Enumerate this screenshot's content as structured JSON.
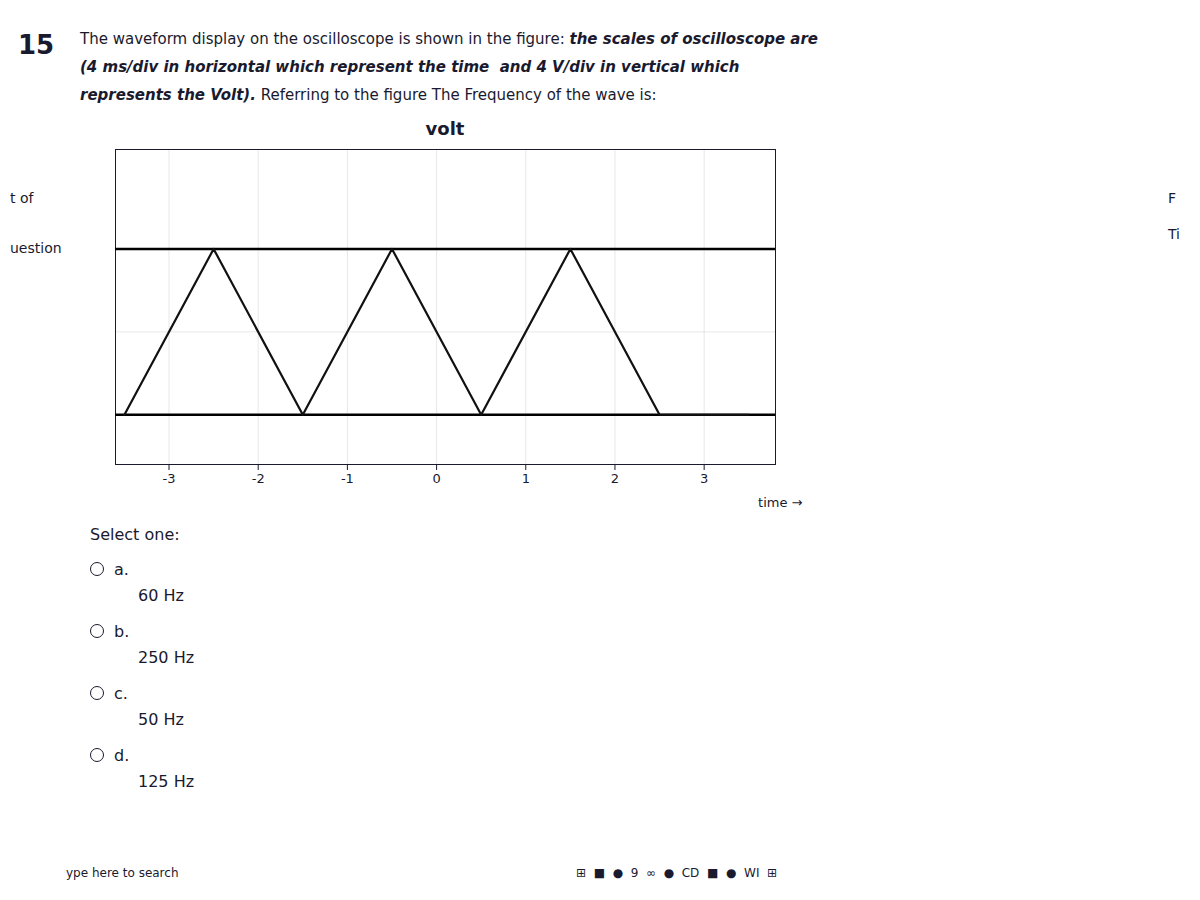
{
  "chart_data": {
    "type": "line",
    "title": "volt",
    "xlabel": "time",
    "x": [
      -3.5,
      -2.5,
      -1.5,
      -0.5,
      0.5,
      1.5,
      2.5,
      3.5
    ],
    "values": [
      -1,
      1,
      -1,
      1,
      -1,
      1,
      -1,
      -1
    ],
    "color": "#111111",
    "xlim": [
      -3.6,
      3.8
    ],
    "ylim": [
      -1.6,
      2.2
    ],
    "xticks": [
      -3,
      -2,
      -1,
      0,
      1,
      2,
      3
    ],
    "yticks": [
      -1,
      0,
      1
    ],
    "tick_labels": "x",
    "grid": true,
    "reference_lines": [
      1.0,
      -1.0
    ],
    "annotations": {
      "number": "15",
      "question": [
        [
          "The waveform display on the oscilloscope is shown in the figure: ",
          "the scales of oscilloscope are"
        ],
        [
          "(4 ms/div in horizontal which represent the time  and 4 V/div in vertical which"
        ],
        [
          "represents the Volt).",
          " Referring to the figure The Frequency of the wave is:"
        ]
      ],
      "left_labels": [
        "t of",
        "uestion"
      ],
      "right_labels": [
        "F",
        "Ti"
      ],
      "select_one": "Select one:",
      "options": [
        {
          "label": "a.",
          "value": "60 Hz"
        },
        {
          "label": "b.",
          "value": "250 Hz"
        },
        {
          "label": "c.",
          "value": "50 Hz"
        },
        {
          "label": "d.",
          "value": "125 Hz"
        }
      ],
      "taskbar": [
        "ype here to search",
        "⊞  ■  ●  9  ∞  ●  CD  ■  ●  WI  ⊞"
      ]
    }
  }
}
